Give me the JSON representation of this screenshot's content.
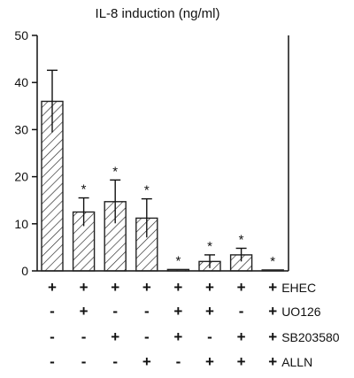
{
  "chart_data": {
    "type": "bar",
    "title": "IL-8 induction (ng/ml)",
    "xlabel": "",
    "ylabel": "",
    "ylim": [
      0,
      50
    ],
    "yticks": [
      "0",
      "10",
      "20",
      "30",
      "40",
      "50"
    ],
    "grid": false,
    "bar_fill": "hatched",
    "bar_color": "#222222",
    "series": [
      {
        "values": [
          36,
          12.5,
          14.7,
          11.2,
          0.3,
          2,
          3.4,
          0.2
        ],
        "error_upper": [
          6.6,
          3,
          4.6,
          4.1,
          0,
          1.4,
          1.4,
          0
        ],
        "significant": [
          "",
          "*",
          "*",
          "*",
          "*",
          "*",
          "*",
          "*"
        ]
      }
    ],
    "treatment_rows": [
      {
        "label": "EHEC",
        "signs": [
          "+",
          "+",
          "+",
          "+",
          "+",
          "+",
          "+",
          "+"
        ]
      },
      {
        "label": "UO126",
        "signs": [
          "-",
          "+",
          "-",
          "-",
          "+",
          "+",
          "-",
          "+"
        ]
      },
      {
        "label": "SB203580",
        "signs": [
          "-",
          "-",
          "+",
          "-",
          "+",
          "-",
          "+",
          "+"
        ]
      },
      {
        "label": "ALLN",
        "signs": [
          "-",
          "-",
          "-",
          "+",
          "-",
          "+",
          "+",
          "+"
        ]
      }
    ]
  }
}
